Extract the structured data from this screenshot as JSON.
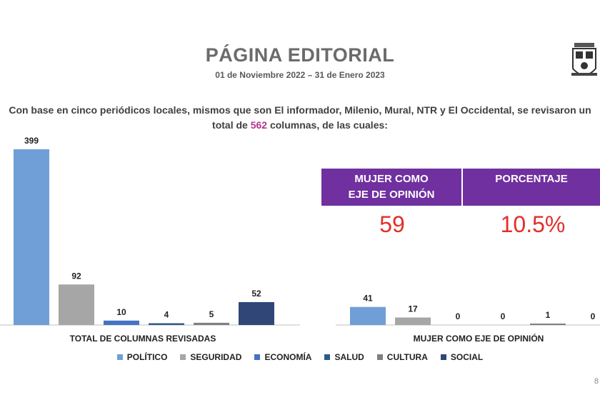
{
  "header": {
    "title": "PÁGINA EDITORIAL",
    "subtitle": "01 de Noviembre 2022 – 31 de Enero 2023"
  },
  "intro": {
    "line1": "Con base en cinco periódicos locales, mismos que son El informador, Milenio, Mural, NTR y El Occidental, se revisaron un",
    "line2_prefix": "total de ",
    "line2_highlight": "562",
    "line2_suffix": " columnas, de las cuales:"
  },
  "stats": {
    "head1_line1": "MUJER COMO",
    "head1_line2": "EJE DE OPINIÓN",
    "head2": "PORCENTAJE",
    "value1": "59",
    "value2": "10.5%"
  },
  "colors": {
    "politico": "#6f9fd6",
    "seguridad": "#a6a6a6",
    "economia": "#4472c4",
    "salud": "#2e5a8a",
    "cultura": "#7f7f7f",
    "social": "#2f4677",
    "header_bg": "#7030a0",
    "stat_value": "#e0302a",
    "highlight": "#b5338a"
  },
  "chart_data": {
    "type": "bar",
    "series": [
      {
        "name": "POLÍTICO",
        "color_key": "politico"
      },
      {
        "name": "SEGURIDAD",
        "color_key": "seguridad"
      },
      {
        "name": "ECONOMÍA",
        "color_key": "economia"
      },
      {
        "name": "SALUD",
        "color_key": "salud"
      },
      {
        "name": "CULTURA",
        "color_key": "cultura"
      },
      {
        "name": "SOCIAL",
        "color_key": "social"
      }
    ],
    "groups": [
      {
        "label": "TOTAL DE COLUMNAS REVISADAS",
        "values": [
          399,
          92,
          10,
          4,
          5,
          52
        ]
      },
      {
        "label": "MUJER COMO EJE DE OPINIÓN",
        "values": [
          41,
          17,
          0,
          0,
          1,
          0
        ]
      }
    ],
    "ylim": [
      0,
      399
    ],
    "legend_position": "bottom",
    "grid": false
  },
  "page_number": "8"
}
